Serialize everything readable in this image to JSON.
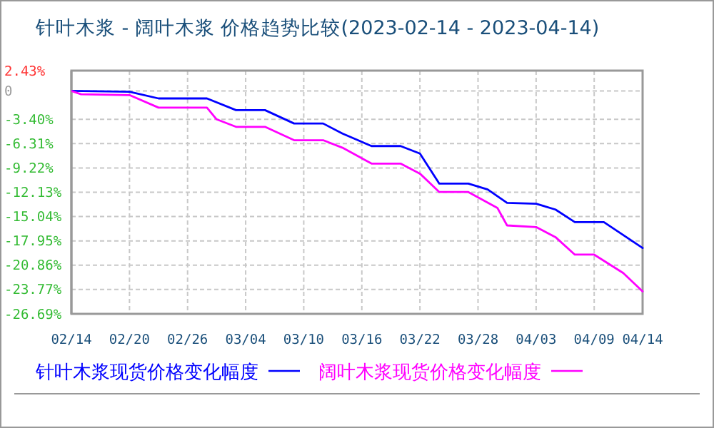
{
  "chart_data": {
    "type": "line",
    "title": "针叶木浆 - 阔叶木浆 价格趋势比较(2023-02-14 - 2023-04-14)",
    "xlim": [
      "2023-02-14",
      "2023-04-14"
    ],
    "xticks": [
      {
        "value": "2023-02-14",
        "label": "02/14"
      },
      {
        "value": "2023-02-20",
        "label": "02/20"
      },
      {
        "value": "2023-02-26",
        "label": "02/26"
      },
      {
        "value": "2023-03-04",
        "label": "03/04"
      },
      {
        "value": "2023-03-10",
        "label": "03/10"
      },
      {
        "value": "2023-03-16",
        "label": "03/16"
      },
      {
        "value": "2023-03-22",
        "label": "03/22"
      },
      {
        "value": "2023-03-28",
        "label": "03/28"
      },
      {
        "value": "2023-04-03",
        "label": "04/03"
      },
      {
        "value": "2023-04-09",
        "label": "04/09"
      },
      {
        "value": "2023-04-14",
        "label": "04/14"
      }
    ],
    "ylim": [
      -26.69,
      2.43
    ],
    "yticks": [
      {
        "value": -26.69,
        "label": "-26.69%"
      },
      {
        "value": -23.77,
        "label": "-23.77%"
      },
      {
        "value": -20.86,
        "label": "-20.86%"
      },
      {
        "value": -17.95,
        "label": "-17.95%"
      },
      {
        "value": -15.04,
        "label": "-15.04%"
      },
      {
        "value": -12.13,
        "label": "-12.13%"
      },
      {
        "value": -9.22,
        "label": "-9.22%"
      },
      {
        "value": -6.31,
        "label": "-6.31%"
      },
      {
        "value": -3.4,
        "label": "-3.40%"
      },
      0,
      {
        "value": 2.43,
        "label": "2.43%"
      }
    ],
    "grid": true,
    "legend": "bottom",
    "marker": "none",
    "line_style": "solid",
    "series": [
      {
        "name": "针叶木浆现货价格变化幅度",
        "color": "#0000ff",
        "x": [
          "2023-02-14",
          "2023-02-20",
          "2023-02-23",
          "2023-02-28",
          "2023-03-03",
          "2023-03-06",
          "2023-03-09",
          "2023-03-12",
          "2023-03-14",
          "2023-03-17",
          "2023-03-20",
          "2023-03-22",
          "2023-03-24",
          "2023-03-27",
          "2023-03-29",
          "2023-03-31",
          "2023-04-03",
          "2023-04-05",
          "2023-04-07",
          "2023-04-10",
          "2023-04-14"
        ],
        "values": [
          0,
          -0.1,
          -0.9,
          -0.9,
          -2.3,
          -2.3,
          -3.9,
          -3.9,
          -5.1,
          -6.6,
          -6.6,
          -7.5,
          -11.1,
          -11.1,
          -11.8,
          -13.4,
          -13.5,
          -14.2,
          -15.7,
          -15.7,
          -18.8
        ]
      },
      {
        "name": "阔叶木浆现货价格变化幅度",
        "color": "#ff00ff",
        "x": [
          "2023-02-14",
          "2023-02-15",
          "2023-02-20",
          "2023-02-23",
          "2023-02-28",
          "2023-03-01",
          "2023-03-03",
          "2023-03-06",
          "2023-03-09",
          "2023-03-12",
          "2023-03-14",
          "2023-03-17",
          "2023-03-20",
          "2023-03-22",
          "2023-03-24",
          "2023-03-27",
          "2023-03-30",
          "2023-03-31",
          "2023-04-03",
          "2023-04-05",
          "2023-04-07",
          "2023-04-09",
          "2023-04-12",
          "2023-04-14"
        ],
        "values": [
          0,
          -0.4,
          -0.5,
          -2.0,
          -2.0,
          -3.4,
          -4.3,
          -4.3,
          -5.9,
          -5.9,
          -6.8,
          -8.7,
          -8.7,
          -9.9,
          -12.1,
          -12.1,
          -14.0,
          -16.1,
          -16.3,
          -17.5,
          -19.6,
          -19.6,
          -21.8,
          -24.0
        ]
      }
    ]
  }
}
